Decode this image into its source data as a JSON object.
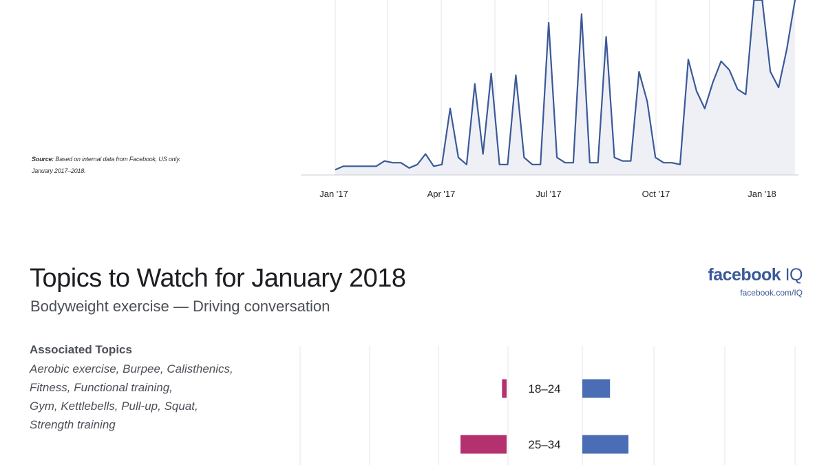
{
  "source_note": {
    "label": "Source:",
    "line1": "Based on internal data from Facebook, US only.",
    "line2": "January 2017–2018."
  },
  "title": "Topics to Watch for January 2018",
  "subtitle": "Bodyweight exercise — Driving conversation",
  "brand": {
    "logo_bold": "facebook",
    "logo_light": " IQ",
    "url": "facebook.com/IQ"
  },
  "associated_topics": {
    "heading": "Associated Topics",
    "lines": [
      "Aerobic exercise, Burpee, Calisthenics,",
      "Fitness, Functional training,",
      "Gym, Kettlebells, Pull-up, Squat,",
      "Strength training"
    ]
  },
  "colors": {
    "line": "#3b5998",
    "area": "#eef0f6",
    "grid": "#e3e5ea",
    "bar_left": "#b5306f",
    "bar_right": "#4a6db5"
  },
  "chart_data": [
    {
      "type": "area",
      "x_tick_labels": [
        "Jan '17",
        "Apr '17",
        "Jul '17",
        "Oct '17",
        "Jan '18"
      ],
      "x_start": "2017-01-01",
      "x_end": "2018-01-31",
      "y_range": [
        0,
        100
      ],
      "grid": true,
      "values": [
        3,
        5,
        5,
        5,
        5,
        5,
        8,
        7,
        7,
        4,
        6,
        12,
        5,
        6,
        38,
        10,
        6,
        52,
        12,
        58,
        6,
        6,
        57,
        10,
        6,
        6,
        87,
        10,
        7,
        7,
        92,
        7,
        7,
        79,
        10,
        8,
        8,
        59,
        42,
        10,
        7,
        7,
        6,
        66,
        48,
        38,
        53,
        65,
        60,
        49,
        46,
        100,
        100,
        59,
        50,
        72,
        100
      ]
    },
    {
      "type": "bar",
      "orientation": "horizontal-diverging",
      "categories": [
        "18–24",
        "25–34"
      ],
      "series": [
        {
          "values": [
            1,
            10
          ]
        },
        {
          "values": [
            6,
            10
          ]
        }
      ]
    }
  ]
}
